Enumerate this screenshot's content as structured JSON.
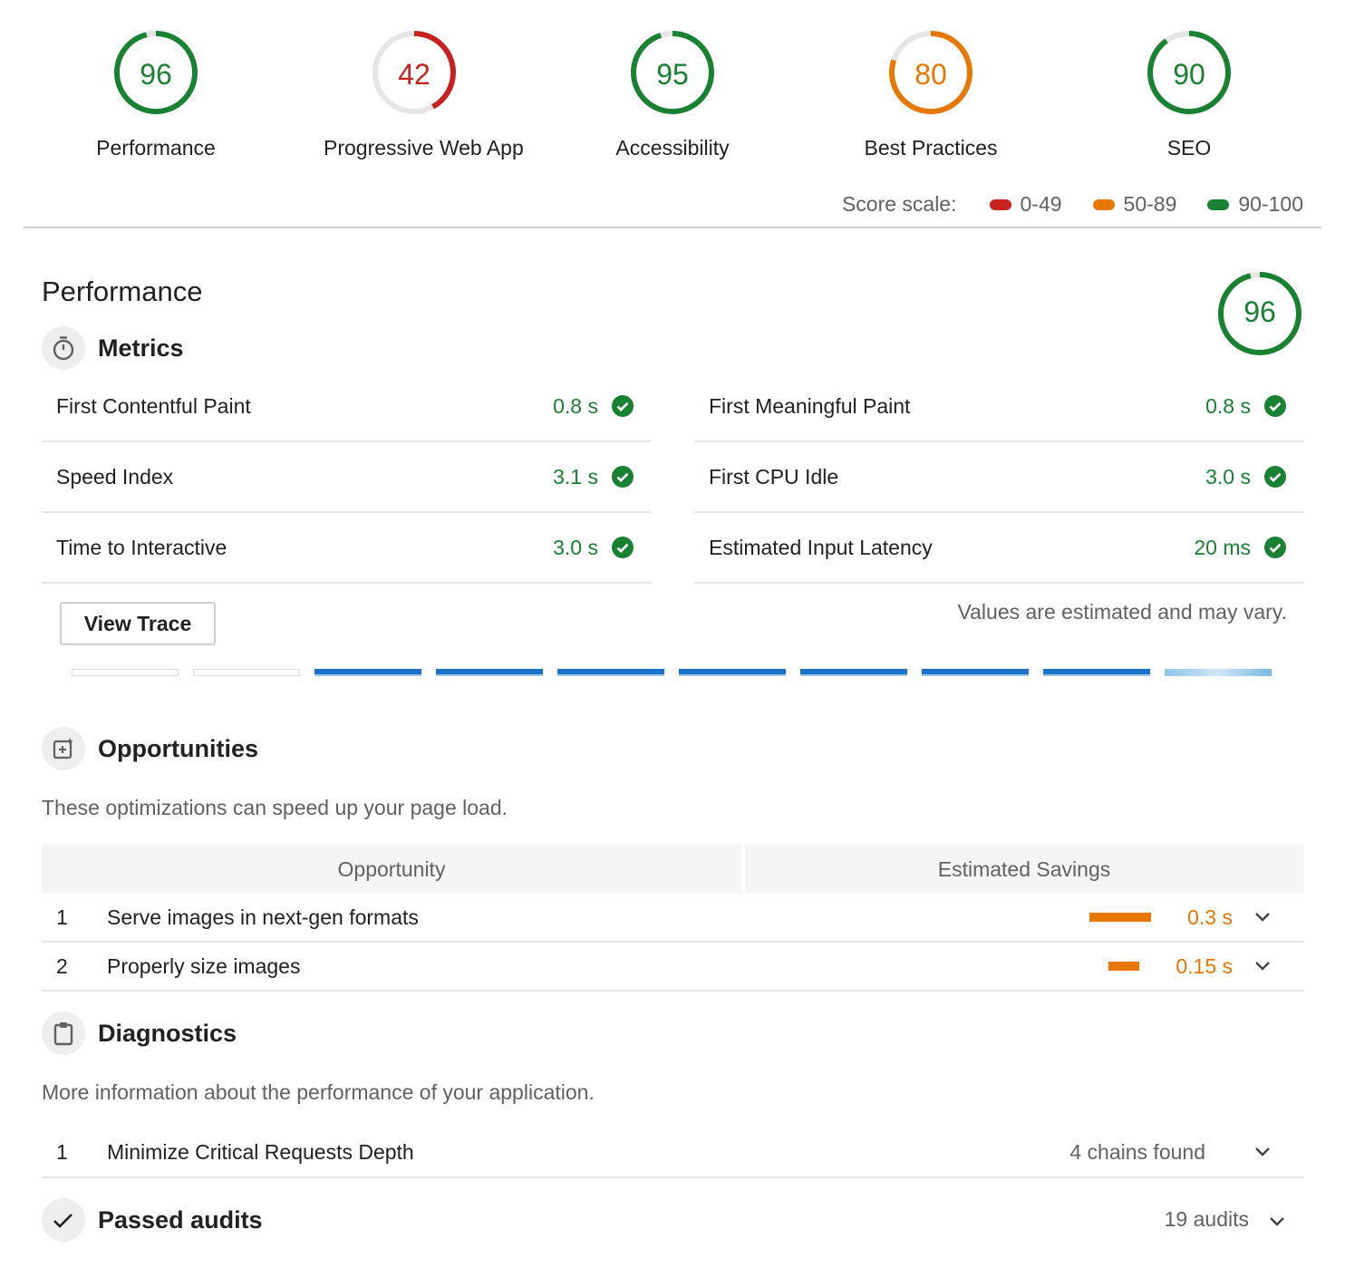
{
  "gauges": [
    {
      "score": "96",
      "label": "Performance",
      "value": 96,
      "color": "#198132"
    },
    {
      "score": "42",
      "label": "Progressive Web App",
      "value": 42,
      "color": "#c7221f"
    },
    {
      "score": "95",
      "label": "Accessibility",
      "value": 95,
      "color": "#198132"
    },
    {
      "score": "80",
      "label": "Best Practices",
      "value": 80,
      "color": "#e67700"
    },
    {
      "score": "90",
      "label": "SEO",
      "value": 90,
      "color": "#198132"
    }
  ],
  "score_scale": {
    "label": "Score scale:",
    "ranges": [
      {
        "text": "0-49",
        "color": "#c7221f"
      },
      {
        "text": "50-89",
        "color": "#e67700"
      },
      {
        "text": "90-100",
        "color": "#198132"
      }
    ]
  },
  "performance": {
    "title": "Performance",
    "score": "96",
    "value": 96,
    "metrics_title": "Metrics",
    "metrics": [
      {
        "name": "First Contentful Paint",
        "value": "0.8 s"
      },
      {
        "name": "First Meaningful Paint",
        "value": "0.8 s"
      },
      {
        "name": "Speed Index",
        "value": "3.1 s"
      },
      {
        "name": "First CPU Idle",
        "value": "3.0 s"
      },
      {
        "name": "Time to Interactive",
        "value": "3.0 s"
      },
      {
        "name": "Estimated Input Latency",
        "value": "20 ms"
      }
    ],
    "view_trace_label": "View Trace",
    "estimate_note": "Values are estimated and may vary.",
    "filmstrip_frames": 10
  },
  "opportunities": {
    "title": "Opportunities",
    "description": "These optimizations can speed up your page load.",
    "columns": [
      "Opportunity",
      "Estimated Savings"
    ],
    "rows": [
      {
        "index": "1",
        "name": "Serve images in next-gen formats",
        "savings": "0.3 s",
        "savings_fraction": 1.0
      },
      {
        "index": "2",
        "name": "Properly size images",
        "savings": "0.15 s",
        "savings_fraction": 0.5
      }
    ]
  },
  "diagnostics": {
    "title": "Diagnostics",
    "description": "More information about the performance of your application.",
    "rows": [
      {
        "index": "1",
        "name": "Minimize Critical Requests Depth",
        "info": "4 chains found"
      }
    ]
  },
  "passed": {
    "title": "Passed audits",
    "count": "19 audits"
  },
  "icons": {
    "metrics": "stopwatch-icon",
    "opportunities": "opportunity-icon",
    "diagnostics": "clipboard-icon",
    "passed": "checkmark-icon",
    "metric_status": "check-circle-icon",
    "expand": "chevron-down-icon"
  }
}
